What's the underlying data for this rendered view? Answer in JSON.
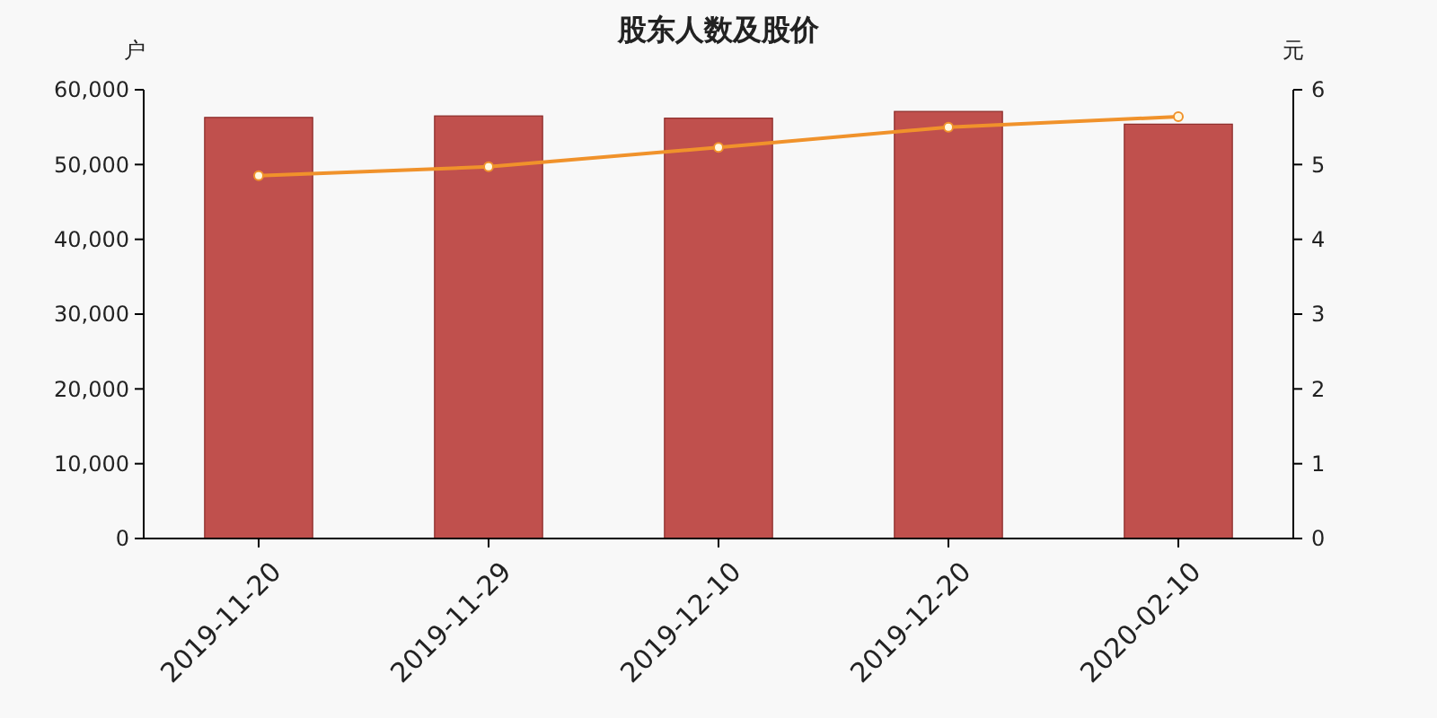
{
  "chart_data": {
    "type": "bar",
    "title": "股东人数及股价",
    "ylabel": "户",
    "y2label": "元",
    "categories": [
      "2019-11-20",
      "2019-11-29",
      "2019-12-10",
      "2019-12-20",
      "2020-02-10"
    ],
    "series": [
      {
        "color": "#c0504d",
        "values": [
          56300,
          56500,
          56200,
          57100,
          55400
        ]
      },
      {
        "type": "line",
        "axis": "y2",
        "color": "#f0922b",
        "marker": "circle",
        "values": [
          4.85,
          4.97,
          5.23,
          5.5,
          5.64
        ]
      }
    ],
    "ylim": [
      0,
      60000
    ],
    "yticks": [
      {
        "value": 0,
        "label": "0"
      },
      {
        "value": 10000,
        "label": "10,000"
      },
      {
        "value": 20000,
        "label": "20,000"
      },
      {
        "value": 30000,
        "label": "30,000"
      },
      {
        "value": 40000,
        "label": "40,000"
      },
      {
        "value": 50000,
        "label": "50,000"
      },
      {
        "value": 60000,
        "label": "60,000"
      }
    ],
    "y2lim": [
      0,
      6
    ],
    "y2ticks": [
      0,
      1,
      2,
      3,
      4,
      5,
      6
    ],
    "grid": false
  }
}
